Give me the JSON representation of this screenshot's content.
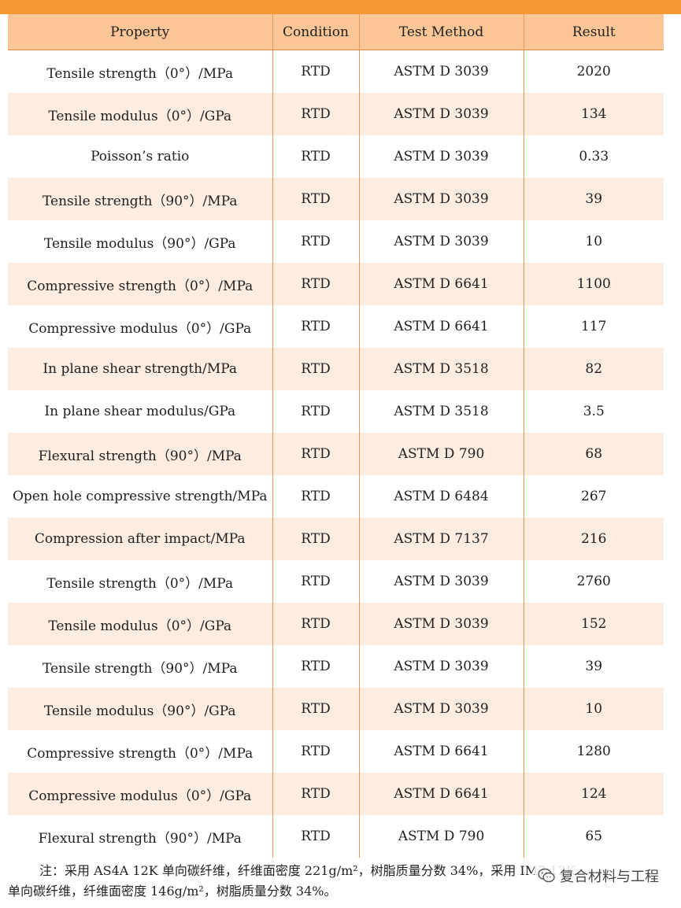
{
  "table": {
    "headers": [
      "Property",
      "Condition",
      "Test Method",
      "Result"
    ],
    "rows": [
      [
        "Tensile strength（0°）/MPa",
        "RTD",
        "ASTM D 3039",
        "2020"
      ],
      [
        "Tensile modulus（0°）/GPa",
        "RTD",
        "ASTM D 3039",
        "134"
      ],
      [
        "Poisson’s ratio",
        "RTD",
        "ASTM D 3039",
        "0.33"
      ],
      [
        "Tensile strength（90°）/MPa",
        "RTD",
        "ASTM D 3039",
        "39"
      ],
      [
        "Tensile modulus（90°）/GPa",
        "RTD",
        "ASTM D 3039",
        "10"
      ],
      [
        "Compressive strength（0°）/MPa",
        "RTD",
        "ASTM D 6641",
        "1100"
      ],
      [
        "Compressive modulus（0°）/GPa",
        "RTD",
        "ASTM D 6641",
        "117"
      ],
      [
        "In plane shear strength/MPa",
        "RTD",
        "ASTM D 3518",
        "82"
      ],
      [
        "In plane shear modulus/GPa",
        "RTD",
        "ASTM D 3518",
        "3.5"
      ],
      [
        "Flexural strength（90°）/MPa",
        "RTD",
        "ASTM D 790",
        "68"
      ],
      [
        "Open hole compressive strength/MPa",
        "RTD",
        "ASTM D 6484",
        "267"
      ],
      [
        "Compression after impact/MPa",
        "RTD",
        "ASTM D 7137",
        "216"
      ],
      [
        "Tensile strength（0°）/MPa",
        "RTD",
        "ASTM D 3039",
        "2760"
      ],
      [
        "Tensile modulus（0°）/GPa",
        "RTD",
        "ASTM D 3039",
        "152"
      ],
      [
        "Tensile strength（90°）/MPa",
        "RTD",
        "ASTM D 3039",
        "39"
      ],
      [
        "Tensile modulus（90°）/GPa",
        "RTD",
        "ASTM D 3039",
        "10"
      ],
      [
        "Compressive strength（0°）/MPa",
        "RTD",
        "ASTM D 6641",
        "1280"
      ],
      [
        "Compressive modulus（0°）/GPa",
        "RTD",
        "ASTM D 6641",
        "124"
      ],
      [
        "Flexural strength（90°）/MPa",
        "RTD",
        "ASTM D 790",
        "65"
      ]
    ]
  },
  "note": {
    "line1": "注：采用 AS4A 12K 单向碳纤维，纤维面密度 221g/m²，树脂质量分数 34%，采用 IM7 12K",
    "line2": "单向碳纤维，纤维面密度 146g/m²，树脂质量分数 34%。"
  },
  "watermark": {
    "text": "复合材料与工程",
    "icon": "wechat-icon"
  },
  "colors": {
    "accent": "#f59a33",
    "header_bg": "#fbc697",
    "stripe": "#fdece0"
  }
}
